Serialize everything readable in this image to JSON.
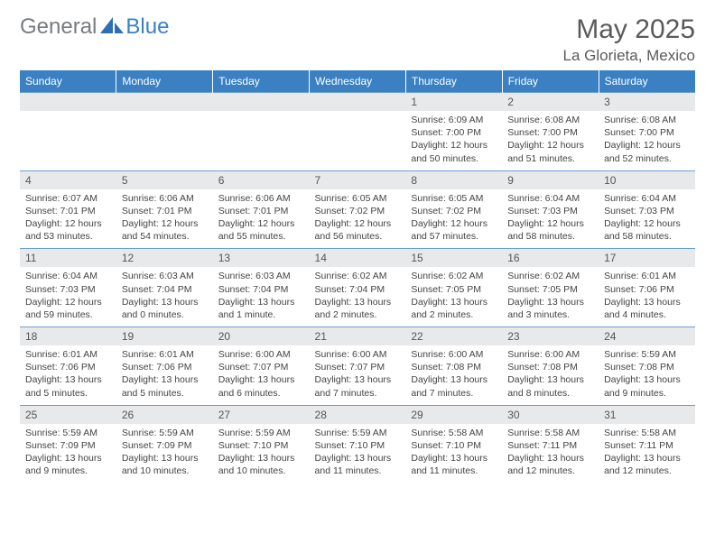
{
  "brand": {
    "word1": "General",
    "word2": "Blue"
  },
  "header": {
    "month": "May 2025",
    "location": "La Glorieta, Mexico"
  },
  "colors": {
    "header_bg": "#3a80c3",
    "daynum_bg": "#e8e9ea",
    "border": "#6aa0d1",
    "text": "#333333"
  },
  "days": [
    "Sunday",
    "Monday",
    "Tuesday",
    "Wednesday",
    "Thursday",
    "Friday",
    "Saturday"
  ],
  "weeks": [
    {
      "nums": [
        "",
        "",
        "",
        "",
        "1",
        "2",
        "3"
      ],
      "cells": [
        {
          "sunrise": "",
          "sunset": "",
          "day1": "",
          "day2": ""
        },
        {
          "sunrise": "",
          "sunset": "",
          "day1": "",
          "day2": ""
        },
        {
          "sunrise": "",
          "sunset": "",
          "day1": "",
          "day2": ""
        },
        {
          "sunrise": "",
          "sunset": "",
          "day1": "",
          "day2": ""
        },
        {
          "sunrise": "Sunrise: 6:09 AM",
          "sunset": "Sunset: 7:00 PM",
          "day1": "Daylight: 12 hours",
          "day2": "and 50 minutes."
        },
        {
          "sunrise": "Sunrise: 6:08 AM",
          "sunset": "Sunset: 7:00 PM",
          "day1": "Daylight: 12 hours",
          "day2": "and 51 minutes."
        },
        {
          "sunrise": "Sunrise: 6:08 AM",
          "sunset": "Sunset: 7:00 PM",
          "day1": "Daylight: 12 hours",
          "day2": "and 52 minutes."
        }
      ]
    },
    {
      "nums": [
        "4",
        "5",
        "6",
        "7",
        "8",
        "9",
        "10"
      ],
      "cells": [
        {
          "sunrise": "Sunrise: 6:07 AM",
          "sunset": "Sunset: 7:01 PM",
          "day1": "Daylight: 12 hours",
          "day2": "and 53 minutes."
        },
        {
          "sunrise": "Sunrise: 6:06 AM",
          "sunset": "Sunset: 7:01 PM",
          "day1": "Daylight: 12 hours",
          "day2": "and 54 minutes."
        },
        {
          "sunrise": "Sunrise: 6:06 AM",
          "sunset": "Sunset: 7:01 PM",
          "day1": "Daylight: 12 hours",
          "day2": "and 55 minutes."
        },
        {
          "sunrise": "Sunrise: 6:05 AM",
          "sunset": "Sunset: 7:02 PM",
          "day1": "Daylight: 12 hours",
          "day2": "and 56 minutes."
        },
        {
          "sunrise": "Sunrise: 6:05 AM",
          "sunset": "Sunset: 7:02 PM",
          "day1": "Daylight: 12 hours",
          "day2": "and 57 minutes."
        },
        {
          "sunrise": "Sunrise: 6:04 AM",
          "sunset": "Sunset: 7:03 PM",
          "day1": "Daylight: 12 hours",
          "day2": "and 58 minutes."
        },
        {
          "sunrise": "Sunrise: 6:04 AM",
          "sunset": "Sunset: 7:03 PM",
          "day1": "Daylight: 12 hours",
          "day2": "and 58 minutes."
        }
      ]
    },
    {
      "nums": [
        "11",
        "12",
        "13",
        "14",
        "15",
        "16",
        "17"
      ],
      "cells": [
        {
          "sunrise": "Sunrise: 6:04 AM",
          "sunset": "Sunset: 7:03 PM",
          "day1": "Daylight: 12 hours",
          "day2": "and 59 minutes."
        },
        {
          "sunrise": "Sunrise: 6:03 AM",
          "sunset": "Sunset: 7:04 PM",
          "day1": "Daylight: 13 hours",
          "day2": "and 0 minutes."
        },
        {
          "sunrise": "Sunrise: 6:03 AM",
          "sunset": "Sunset: 7:04 PM",
          "day1": "Daylight: 13 hours",
          "day2": "and 1 minute."
        },
        {
          "sunrise": "Sunrise: 6:02 AM",
          "sunset": "Sunset: 7:04 PM",
          "day1": "Daylight: 13 hours",
          "day2": "and 2 minutes."
        },
        {
          "sunrise": "Sunrise: 6:02 AM",
          "sunset": "Sunset: 7:05 PM",
          "day1": "Daylight: 13 hours",
          "day2": "and 2 minutes."
        },
        {
          "sunrise": "Sunrise: 6:02 AM",
          "sunset": "Sunset: 7:05 PM",
          "day1": "Daylight: 13 hours",
          "day2": "and 3 minutes."
        },
        {
          "sunrise": "Sunrise: 6:01 AM",
          "sunset": "Sunset: 7:06 PM",
          "day1": "Daylight: 13 hours",
          "day2": "and 4 minutes."
        }
      ]
    },
    {
      "nums": [
        "18",
        "19",
        "20",
        "21",
        "22",
        "23",
        "24"
      ],
      "cells": [
        {
          "sunrise": "Sunrise: 6:01 AM",
          "sunset": "Sunset: 7:06 PM",
          "day1": "Daylight: 13 hours",
          "day2": "and 5 minutes."
        },
        {
          "sunrise": "Sunrise: 6:01 AM",
          "sunset": "Sunset: 7:06 PM",
          "day1": "Daylight: 13 hours",
          "day2": "and 5 minutes."
        },
        {
          "sunrise": "Sunrise: 6:00 AM",
          "sunset": "Sunset: 7:07 PM",
          "day1": "Daylight: 13 hours",
          "day2": "and 6 minutes."
        },
        {
          "sunrise": "Sunrise: 6:00 AM",
          "sunset": "Sunset: 7:07 PM",
          "day1": "Daylight: 13 hours",
          "day2": "and 7 minutes."
        },
        {
          "sunrise": "Sunrise: 6:00 AM",
          "sunset": "Sunset: 7:08 PM",
          "day1": "Daylight: 13 hours",
          "day2": "and 7 minutes."
        },
        {
          "sunrise": "Sunrise: 6:00 AM",
          "sunset": "Sunset: 7:08 PM",
          "day1": "Daylight: 13 hours",
          "day2": "and 8 minutes."
        },
        {
          "sunrise": "Sunrise: 5:59 AM",
          "sunset": "Sunset: 7:08 PM",
          "day1": "Daylight: 13 hours",
          "day2": "and 9 minutes."
        }
      ]
    },
    {
      "nums": [
        "25",
        "26",
        "27",
        "28",
        "29",
        "30",
        "31"
      ],
      "cells": [
        {
          "sunrise": "Sunrise: 5:59 AM",
          "sunset": "Sunset: 7:09 PM",
          "day1": "Daylight: 13 hours",
          "day2": "and 9 minutes."
        },
        {
          "sunrise": "Sunrise: 5:59 AM",
          "sunset": "Sunset: 7:09 PM",
          "day1": "Daylight: 13 hours",
          "day2": "and 10 minutes."
        },
        {
          "sunrise": "Sunrise: 5:59 AM",
          "sunset": "Sunset: 7:10 PM",
          "day1": "Daylight: 13 hours",
          "day2": "and 10 minutes."
        },
        {
          "sunrise": "Sunrise: 5:59 AM",
          "sunset": "Sunset: 7:10 PM",
          "day1": "Daylight: 13 hours",
          "day2": "and 11 minutes."
        },
        {
          "sunrise": "Sunrise: 5:58 AM",
          "sunset": "Sunset: 7:10 PM",
          "day1": "Daylight: 13 hours",
          "day2": "and 11 minutes."
        },
        {
          "sunrise": "Sunrise: 5:58 AM",
          "sunset": "Sunset: 7:11 PM",
          "day1": "Daylight: 13 hours",
          "day2": "and 12 minutes."
        },
        {
          "sunrise": "Sunrise: 5:58 AM",
          "sunset": "Sunset: 7:11 PM",
          "day1": "Daylight: 13 hours",
          "day2": "and 12 minutes."
        }
      ]
    }
  ]
}
